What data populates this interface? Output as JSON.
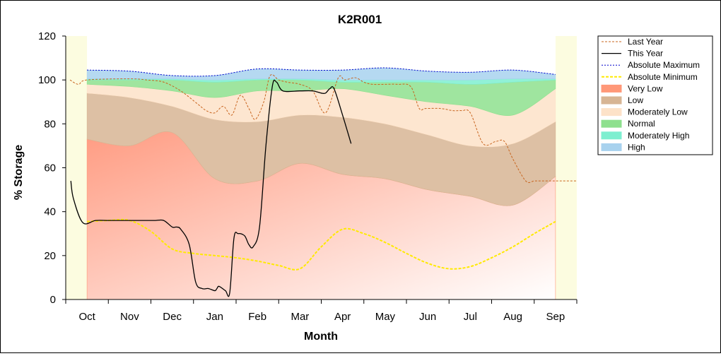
{
  "chart_data": {
    "type": "area",
    "title": "K2R001",
    "xlabel": "Month",
    "ylabel": "% Storage",
    "ylim": [
      0,
      120
    ],
    "yticks": [
      0,
      20,
      40,
      60,
      80,
      100,
      120
    ],
    "x_domain": [
      -0.5,
      11.5
    ],
    "shaded_range": [
      0,
      11
    ],
    "categories": [
      "Oct",
      "Nov",
      "Dec",
      "Jan",
      "Feb",
      "Mar",
      "Apr",
      "May",
      "Jun",
      "Jul",
      "Aug",
      "Sep"
    ],
    "grid": false,
    "legend_position": "right",
    "bands": [
      {
        "name": "Very Low",
        "color": "#ff9878",
        "x": [
          0,
          1,
          2,
          3,
          4,
          5,
          6,
          7,
          8,
          9,
          10,
          11
        ],
        "lower": [
          0,
          0,
          0,
          0,
          0,
          0,
          0,
          0,
          0,
          0,
          0,
          0
        ],
        "upper": [
          73,
          70,
          76,
          55,
          54,
          62,
          57,
          55,
          50,
          47,
          43,
          56
        ]
      },
      {
        "name": "Low",
        "color": "#d7b594",
        "x": [
          0,
          1,
          2,
          3,
          4,
          5,
          6,
          7,
          8,
          9,
          10,
          11
        ],
        "lower": [
          73,
          70,
          76,
          55,
          54,
          62,
          57,
          55,
          50,
          47,
          43,
          56
        ],
        "upper": [
          94,
          92,
          88,
          82,
          81,
          84,
          83,
          80,
          75,
          70,
          71,
          81
        ]
      },
      {
        "name": "Moderately Low",
        "color": "#fde2c8",
        "x": [
          0,
          1,
          2,
          3,
          4,
          5,
          6,
          7,
          8,
          9,
          10,
          11
        ],
        "lower": [
          94,
          92,
          88,
          82,
          81,
          84,
          83,
          80,
          75,
          70,
          71,
          81
        ],
        "upper": [
          98,
          97,
          95,
          92,
          95,
          95,
          96,
          93,
          90,
          88,
          84,
          96
        ]
      },
      {
        "name": "Normal",
        "color": "#8ee08e",
        "x": [
          0,
          1,
          2,
          3,
          4,
          5,
          6,
          7,
          8,
          9,
          10,
          11
        ],
        "lower": [
          98,
          97,
          95,
          92,
          95,
          95,
          96,
          93,
          90,
          88,
          84,
          96
        ],
        "upper": [
          100,
          100,
          100,
          99,
          100,
          100,
          99,
          99,
          99,
          98,
          99,
          100
        ]
      },
      {
        "name": "Moderately High",
        "color": "#7eefd0",
        "x": [
          0,
          1,
          2,
          3,
          4,
          5,
          6,
          7,
          8,
          9,
          10,
          11
        ],
        "lower": [
          100,
          100,
          100,
          99,
          100,
          100,
          99,
          99,
          99,
          98,
          99,
          100
        ],
        "upper": [
          100.5,
          100.5,
          100.5,
          100,
          100.5,
          100.5,
          100,
          100,
          100,
          100,
          100.5,
          100.5
        ]
      },
      {
        "name": "High",
        "color": "#a8d2ee",
        "x": [
          0,
          1,
          2,
          3,
          4,
          5,
          6,
          7,
          8,
          9,
          10,
          11
        ],
        "lower": [
          100.5,
          100.5,
          100.5,
          100,
          100.5,
          100.5,
          100,
          100,
          100,
          100,
          100.5,
          100.5
        ],
        "upper": [
          104.5,
          104,
          102,
          102,
          105,
          104.5,
          104.5,
          105.5,
          104,
          103.5,
          104.5,
          102.5
        ]
      }
    ],
    "series": [
      {
        "name": "Last Year",
        "color": "#c8641e",
        "dash": "3,2",
        "width": 1,
        "x": [
          -0.4,
          -0.2,
          0,
          1,
          1.4,
          1.8,
          2.2,
          2.6,
          2.8,
          3.0,
          3.2,
          3.4,
          3.6,
          3.8,
          3.95,
          4.15,
          4.3,
          4.5,
          4.7,
          5.0,
          5.3,
          5.6,
          5.9,
          6.05,
          6.3,
          6.5,
          6.7,
          7.0,
          7.3,
          7.6,
          7.8,
          7.95,
          8.3,
          8.6,
          8.8,
          9.0,
          9.3,
          9.6,
          9.8,
          10.0,
          10.3,
          10.5,
          10.65,
          10.8,
          11.0,
          11.5
        ],
        "y": [
          100,
          98,
          100,
          100.5,
          100,
          99,
          95,
          89,
          86,
          85,
          88,
          84,
          93,
          87,
          82,
          90,
          102,
          100,
          99,
          98,
          95,
          85,
          101,
          100,
          101,
          99,
          98,
          98,
          98,
          97,
          87,
          87,
          87,
          86,
          86,
          85,
          71,
          72,
          72,
          64,
          54,
          54,
          54,
          54,
          54,
          54
        ]
      },
      {
        "name": "This Year",
        "color": "#000000",
        "dash": "",
        "width": 1.3,
        "x": [
          -0.38,
          -0.32,
          -0.1,
          0.2,
          0.5,
          0.8,
          1.0,
          1.2,
          1.4,
          1.6,
          1.8,
          2.0,
          2.1,
          2.2,
          2.4,
          2.55,
          2.7,
          2.85,
          3.0,
          3.05,
          3.1,
          3.25,
          3.35,
          3.45,
          3.55,
          3.7,
          3.8,
          3.9,
          4.05,
          4.2,
          4.35,
          4.45,
          4.6,
          5.0,
          5.3,
          5.5,
          5.6,
          5.7,
          5.8,
          6.0,
          6.2
        ],
        "y": [
          54,
          46,
          35,
          36,
          36,
          36,
          36,
          36,
          36,
          36,
          36,
          33,
          33,
          32,
          25,
          8,
          5,
          5,
          4,
          5,
          6,
          4,
          3,
          28,
          30,
          29,
          25,
          24,
          33,
          70,
          97,
          99,
          95,
          95,
          95,
          94,
          94,
          96,
          96,
          84,
          71
        ]
      },
      {
        "name": "Absolute Maximum",
        "color": "#0000cc",
        "dash": "2,2",
        "width": 1,
        "x": [
          0,
          1,
          2,
          3,
          4,
          5,
          6,
          7,
          8,
          9,
          10,
          11
        ],
        "y": [
          104.5,
          104,
          102,
          102,
          105,
          104.5,
          104.5,
          105.5,
          104,
          103.5,
          104.5,
          102.5
        ]
      },
      {
        "name": "Absolute Minimum",
        "color": "#ffea00",
        "dash": "4,2",
        "width": 2,
        "x": [
          0,
          0.5,
          1,
          1.5,
          2,
          2.5,
          3,
          3.5,
          4,
          4.5,
          5,
          5.5,
          6,
          6.5,
          7,
          7.5,
          8,
          8.5,
          9,
          9.5,
          10,
          10.5,
          11
        ],
        "y": [
          35.5,
          36,
          36,
          31,
          23,
          21,
          20,
          19,
          17.5,
          15.5,
          14,
          24,
          32,
          30,
          26,
          21,
          16.5,
          14,
          15,
          19,
          24,
          30,
          35.5
        ]
      }
    ],
    "legend": [
      {
        "label": "Last Year",
        "kind": "line",
        "color": "#c8641e",
        "dash": "3,2",
        "width": 1
      },
      {
        "label": "This Year",
        "kind": "line",
        "color": "#000000",
        "dash": "",
        "width": 1.3
      },
      {
        "label": "Absolute Maximum",
        "kind": "line",
        "color": "#0000cc",
        "dash": "2,2",
        "width": 1
      },
      {
        "label": "Absolute Minimum",
        "kind": "line",
        "color": "#ffea00",
        "dash": "4,2",
        "width": 2
      },
      {
        "label": "Very Low",
        "kind": "area",
        "color": "#ff9878"
      },
      {
        "label": "Low",
        "kind": "area",
        "color": "#d7b594"
      },
      {
        "label": "Moderately Low",
        "kind": "area",
        "color": "#fde2c8"
      },
      {
        "label": "Normal",
        "kind": "area",
        "color": "#8ee08e"
      },
      {
        "label": "Moderately High",
        "kind": "area",
        "color": "#7eefd0"
      },
      {
        "label": "High",
        "kind": "area",
        "color": "#a8d2ee"
      }
    ],
    "colors": {
      "plot_background": "#fcfce0"
    }
  }
}
